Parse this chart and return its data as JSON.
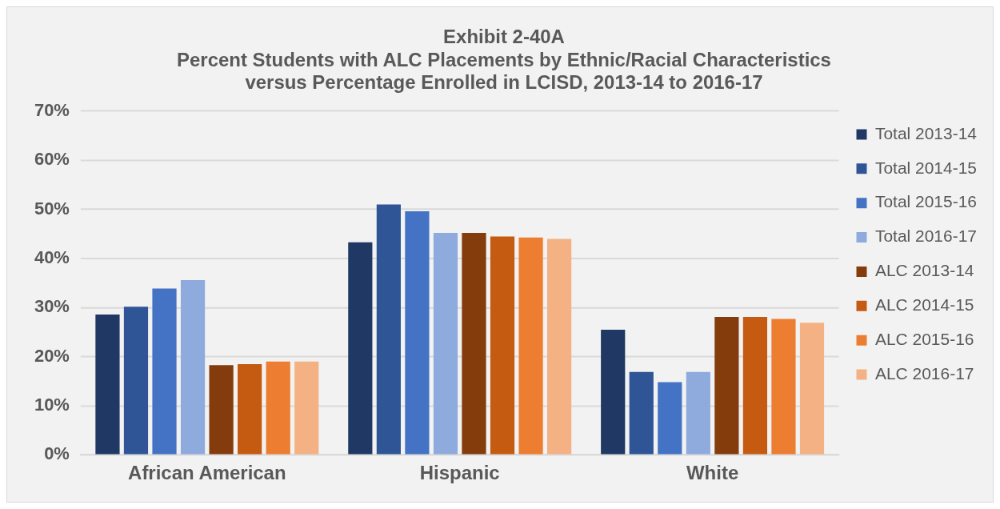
{
  "chart_data": {
    "type": "bar",
    "title": "Exhibit 2-40A\nPercent Students with ALC Placements by Ethnic/Racial Characteristics\nversus Percentage Enrolled in LCISD, 2013-14 to 2016-17",
    "categories": [
      "African American",
      "Hispanic",
      "White"
    ],
    "series": [
      {
        "name": "Total 2013-14",
        "color": "#203864",
        "values": [
          28.6,
          43.3,
          25.5
        ]
      },
      {
        "name": "Total 2014-15",
        "color": "#2f5597",
        "values": [
          30.2,
          51.0,
          16.9
        ]
      },
      {
        "name": "Total 2015-16",
        "color": "#4472c4",
        "values": [
          33.9,
          49.6,
          14.8
        ]
      },
      {
        "name": "Total 2016-17",
        "color": "#8faadc",
        "values": [
          35.6,
          45.2,
          16.9
        ]
      },
      {
        "name": "ALC 2013-14",
        "color": "#843c0c",
        "values": [
          18.3,
          45.2,
          28.1
        ]
      },
      {
        "name": "ALC 2014-15",
        "color": "#c55a11",
        "values": [
          18.5,
          44.5,
          28.1
        ]
      },
      {
        "name": "ALC 2015-16",
        "color": "#ed7d31",
        "values": [
          19.0,
          44.3,
          27.7
        ]
      },
      {
        "name": "ALC 2016-17",
        "color": "#f4b183",
        "values": [
          19.0,
          44.0,
          26.9
        ]
      }
    ],
    "ylim": [
      0,
      70
    ],
    "yticks": [
      {
        "value": 0,
        "label": "0%"
      },
      {
        "value": 10,
        "label": "10%"
      },
      {
        "value": 20,
        "label": "20%"
      },
      {
        "value": 30,
        "label": "30%"
      },
      {
        "value": 40,
        "label": "40%"
      },
      {
        "value": 50,
        "label": "50%"
      },
      {
        "value": 60,
        "label": "60%"
      },
      {
        "value": 70,
        "label": "70%"
      }
    ],
    "grid": "y",
    "legend": "right"
  }
}
